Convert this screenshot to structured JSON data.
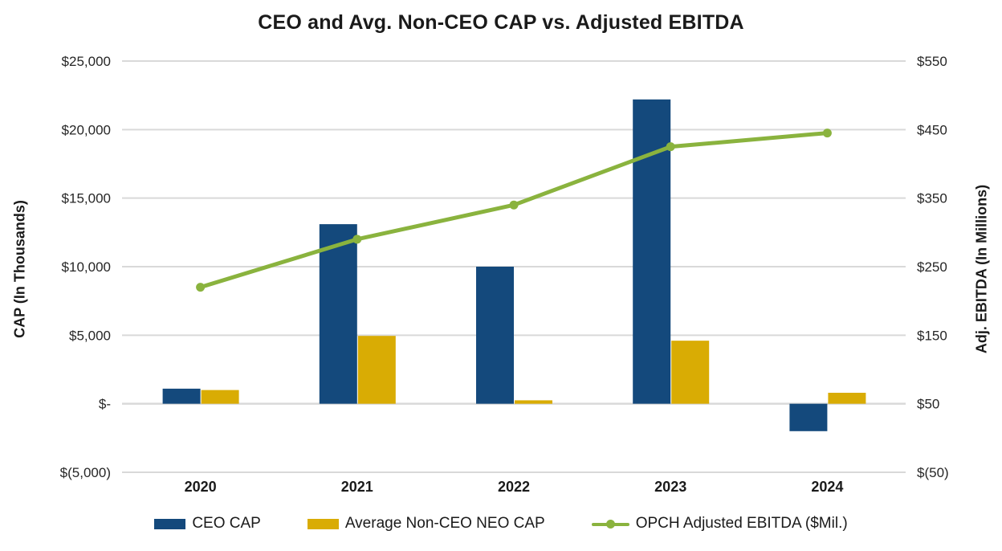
{
  "chart_data": {
    "type": "combo_bar_line",
    "title": "CEO and Avg. Non-CEO CAP vs. Adjusted EBITDA",
    "categories": [
      "2020",
      "2021",
      "2022",
      "2023",
      "2024"
    ],
    "series": [
      {
        "name": "CEO CAP",
        "type": "bar",
        "axis": "left",
        "color": "#14497c",
        "values": [
          1100,
          13100,
          10000,
          22200,
          -2000
        ]
      },
      {
        "name": "Average Non-CEO NEO CAP",
        "type": "bar",
        "axis": "left",
        "color": "#d9ac04",
        "values": [
          1000,
          4950,
          250,
          4600,
          800
        ]
      },
      {
        "name": "OPCH Adjusted EBITDA ($Mil.)",
        "type": "line",
        "axis": "right",
        "color": "#8ab33e",
        "values": [
          220,
          290,
          340,
          425,
          445
        ]
      }
    ],
    "left_axis": {
      "label": "CAP (In Thousands)",
      "min": -5000,
      "max": 25000,
      "tick_step": 5000,
      "tick_labels": [
        "$25,000",
        "$20,000",
        "$15,000",
        "$10,000",
        "$5,000",
        "$-",
        "$(5,000)"
      ]
    },
    "right_axis": {
      "label": "Adj. EBITDA (In Millions)",
      "min": -50,
      "max": 550,
      "tick_step": 100,
      "tick_labels": [
        "$550",
        "$450",
        "$350",
        "$250",
        "$150",
        "$50",
        "$(50)"
      ]
    },
    "grid": true,
    "legend_position": "bottom",
    "colors": {
      "gridline": "#d9d9d9",
      "tick_text": "#262626",
      "title_text": "#1a1a1a"
    }
  }
}
